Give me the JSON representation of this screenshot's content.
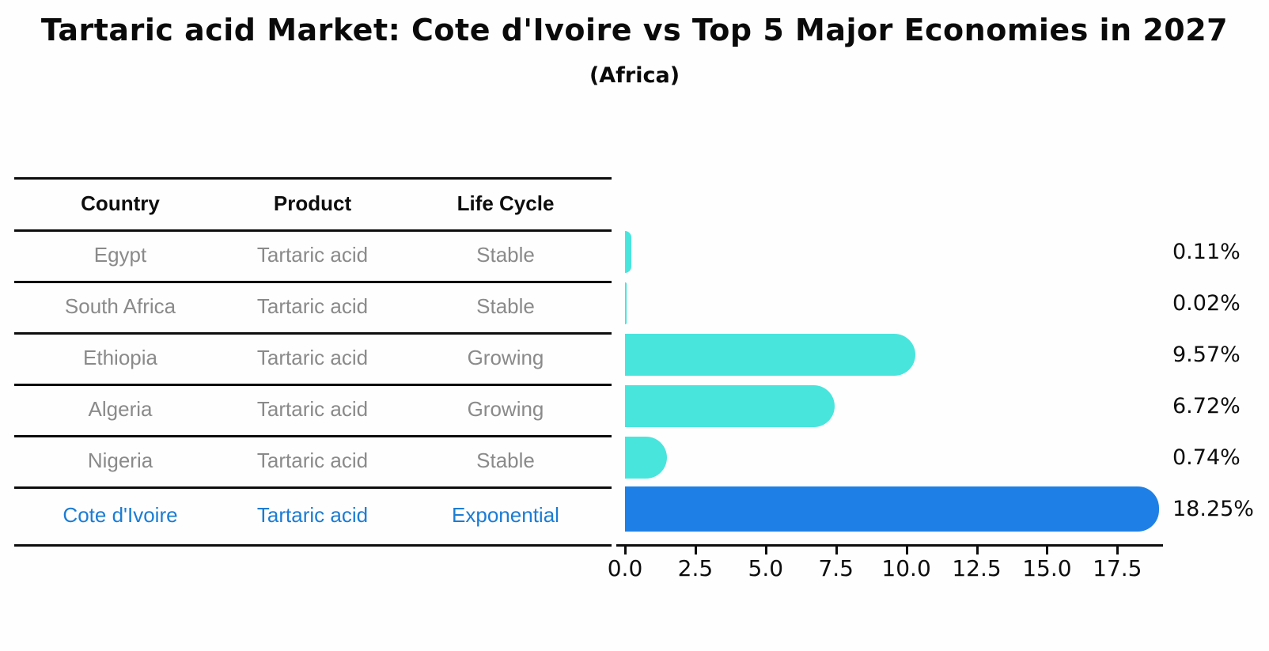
{
  "title": "Tartaric acid Market: Cote d'Ivoire vs Top 5 Major Economies in 2027",
  "subtitle": "(Africa)",
  "table": {
    "headers": [
      "Country",
      "Product",
      "Life Cycle"
    ],
    "rows": [
      {
        "country": "Egypt",
        "product": "Tartaric acid",
        "life_cycle": "Stable",
        "highlight": false
      },
      {
        "country": "South Africa",
        "product": "Tartaric acid",
        "life_cycle": "Stable",
        "highlight": false
      },
      {
        "country": "Ethiopia",
        "product": "Tartaric acid",
        "life_cycle": "Growing",
        "highlight": false
      },
      {
        "country": "Algeria",
        "product": "Tartaric acid",
        "life_cycle": "Growing",
        "highlight": false
      },
      {
        "country": "Nigeria",
        "product": "Tartaric acid",
        "life_cycle": "Stable",
        "highlight": false
      },
      {
        "country": "Cote d'Ivoire",
        "product": "Tartaric acid",
        "life_cycle": "Exponential",
        "highlight": true
      }
    ]
  },
  "chart_data": {
    "type": "bar",
    "orientation": "horizontal",
    "title": "Tartaric acid Market: Cote d'Ivoire vs Top 5 Major Economies in 2027 (Africa)",
    "categories": [
      "Egypt",
      "South Africa",
      "Ethiopia",
      "Algeria",
      "Nigeria",
      "Cote d'Ivoire"
    ],
    "values": [
      0.11,
      0.02,
      9.57,
      6.72,
      0.74,
      18.25
    ],
    "value_labels": [
      "0.11%",
      "0.02%",
      "9.57%",
      "6.72%",
      "0.74%",
      "18.25%"
    ],
    "x_ticks": [
      0.0,
      2.5,
      5.0,
      7.5,
      10.0,
      12.5,
      15.0,
      17.5
    ],
    "x_tick_labels": [
      "0.0",
      "2.5",
      "5.0",
      "7.5",
      "10.0",
      "12.5",
      "15.0",
      "17.5"
    ],
    "xlim": [
      0,
      19.2
    ],
    "xlabel": "",
    "ylabel": "",
    "grid": false,
    "legend": false,
    "highlight_index": 5
  },
  "colors": {
    "default_bar": "#48e5dd",
    "highlight_bar": "#1e80e6",
    "highlight_text": "#1b7cd4",
    "row_text": "#8a8a8a",
    "header_text": "#0d0d0d",
    "axis": "#0d0d0d"
  }
}
